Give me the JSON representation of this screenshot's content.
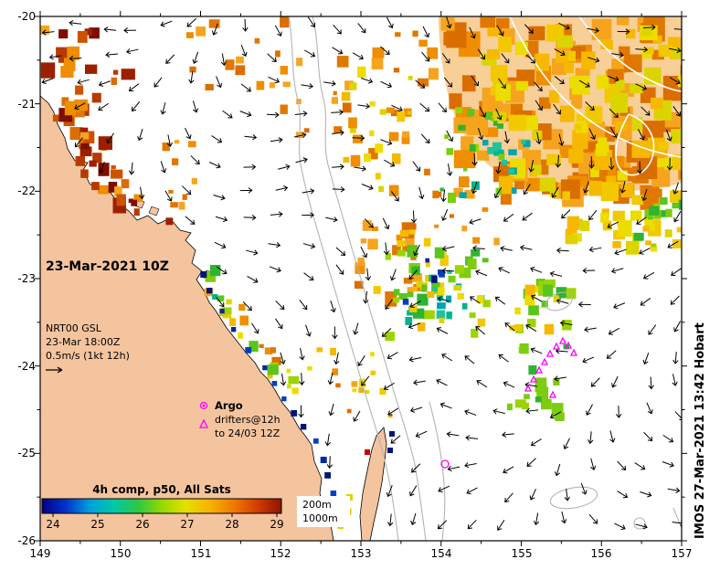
{
  "map": {
    "timestamp_label": "23-Mar-2021 10Z",
    "velocity_block": {
      "line1": "NRT00 GSL",
      "line2": "23-Mar 18:00Z",
      "line3": "0.5m/s (1kt 12h)"
    },
    "argo_legend": {
      "title": "Argo",
      "line2": "drifters@12h",
      "line3": "to 24/03 12Z"
    },
    "colorbar": {
      "title": "4h comp, p50, All Sats",
      "ticks": [
        "24",
        "25",
        "26",
        "27",
        "28",
        "29"
      ]
    },
    "contour_legend": {
      "line1": "200m",
      "line2": "1000m"
    },
    "credit": "IMOS 27-Mar-2021 13:42 Hobart",
    "x_axis": {
      "ticks": [
        "149",
        "150",
        "151",
        "152",
        "153",
        "154",
        "155",
        "156",
        "157"
      ]
    },
    "y_axis": {
      "ticks": [
        "-20",
        "-21",
        "-22",
        "-23",
        "-24",
        "-25",
        "-26"
      ]
    }
  },
  "colors": {
    "land": "#f4c49e",
    "ocean": "#ffffff",
    "magenta": "#ff00ff",
    "contour_gray": "#b4b4b4",
    "colorbar_title": "#1a1a80",
    "red_dot": "#cc0000",
    "sst_hot": [
      "#7e0f00",
      "#9c2000",
      "#b63a00",
      "#cc5200"
    ],
    "sst_warm": [
      "#e07800",
      "#ee8e00",
      "#f6a41e",
      "#db6e00"
    ],
    "sst_yellow": [
      "#f2c800",
      "#ecdc00",
      "#dcd400",
      "#f6b800"
    ],
    "sst_green": [
      "#9cd400",
      "#5cc41e",
      "#2eb430",
      "#7ccc10"
    ],
    "sst_teal": [
      "#00b48c",
      "#00a4ac",
      "#1ec49e"
    ],
    "sst_blue": [
      "#0040c0",
      "#0028a0",
      "#001478"
    ]
  }
}
